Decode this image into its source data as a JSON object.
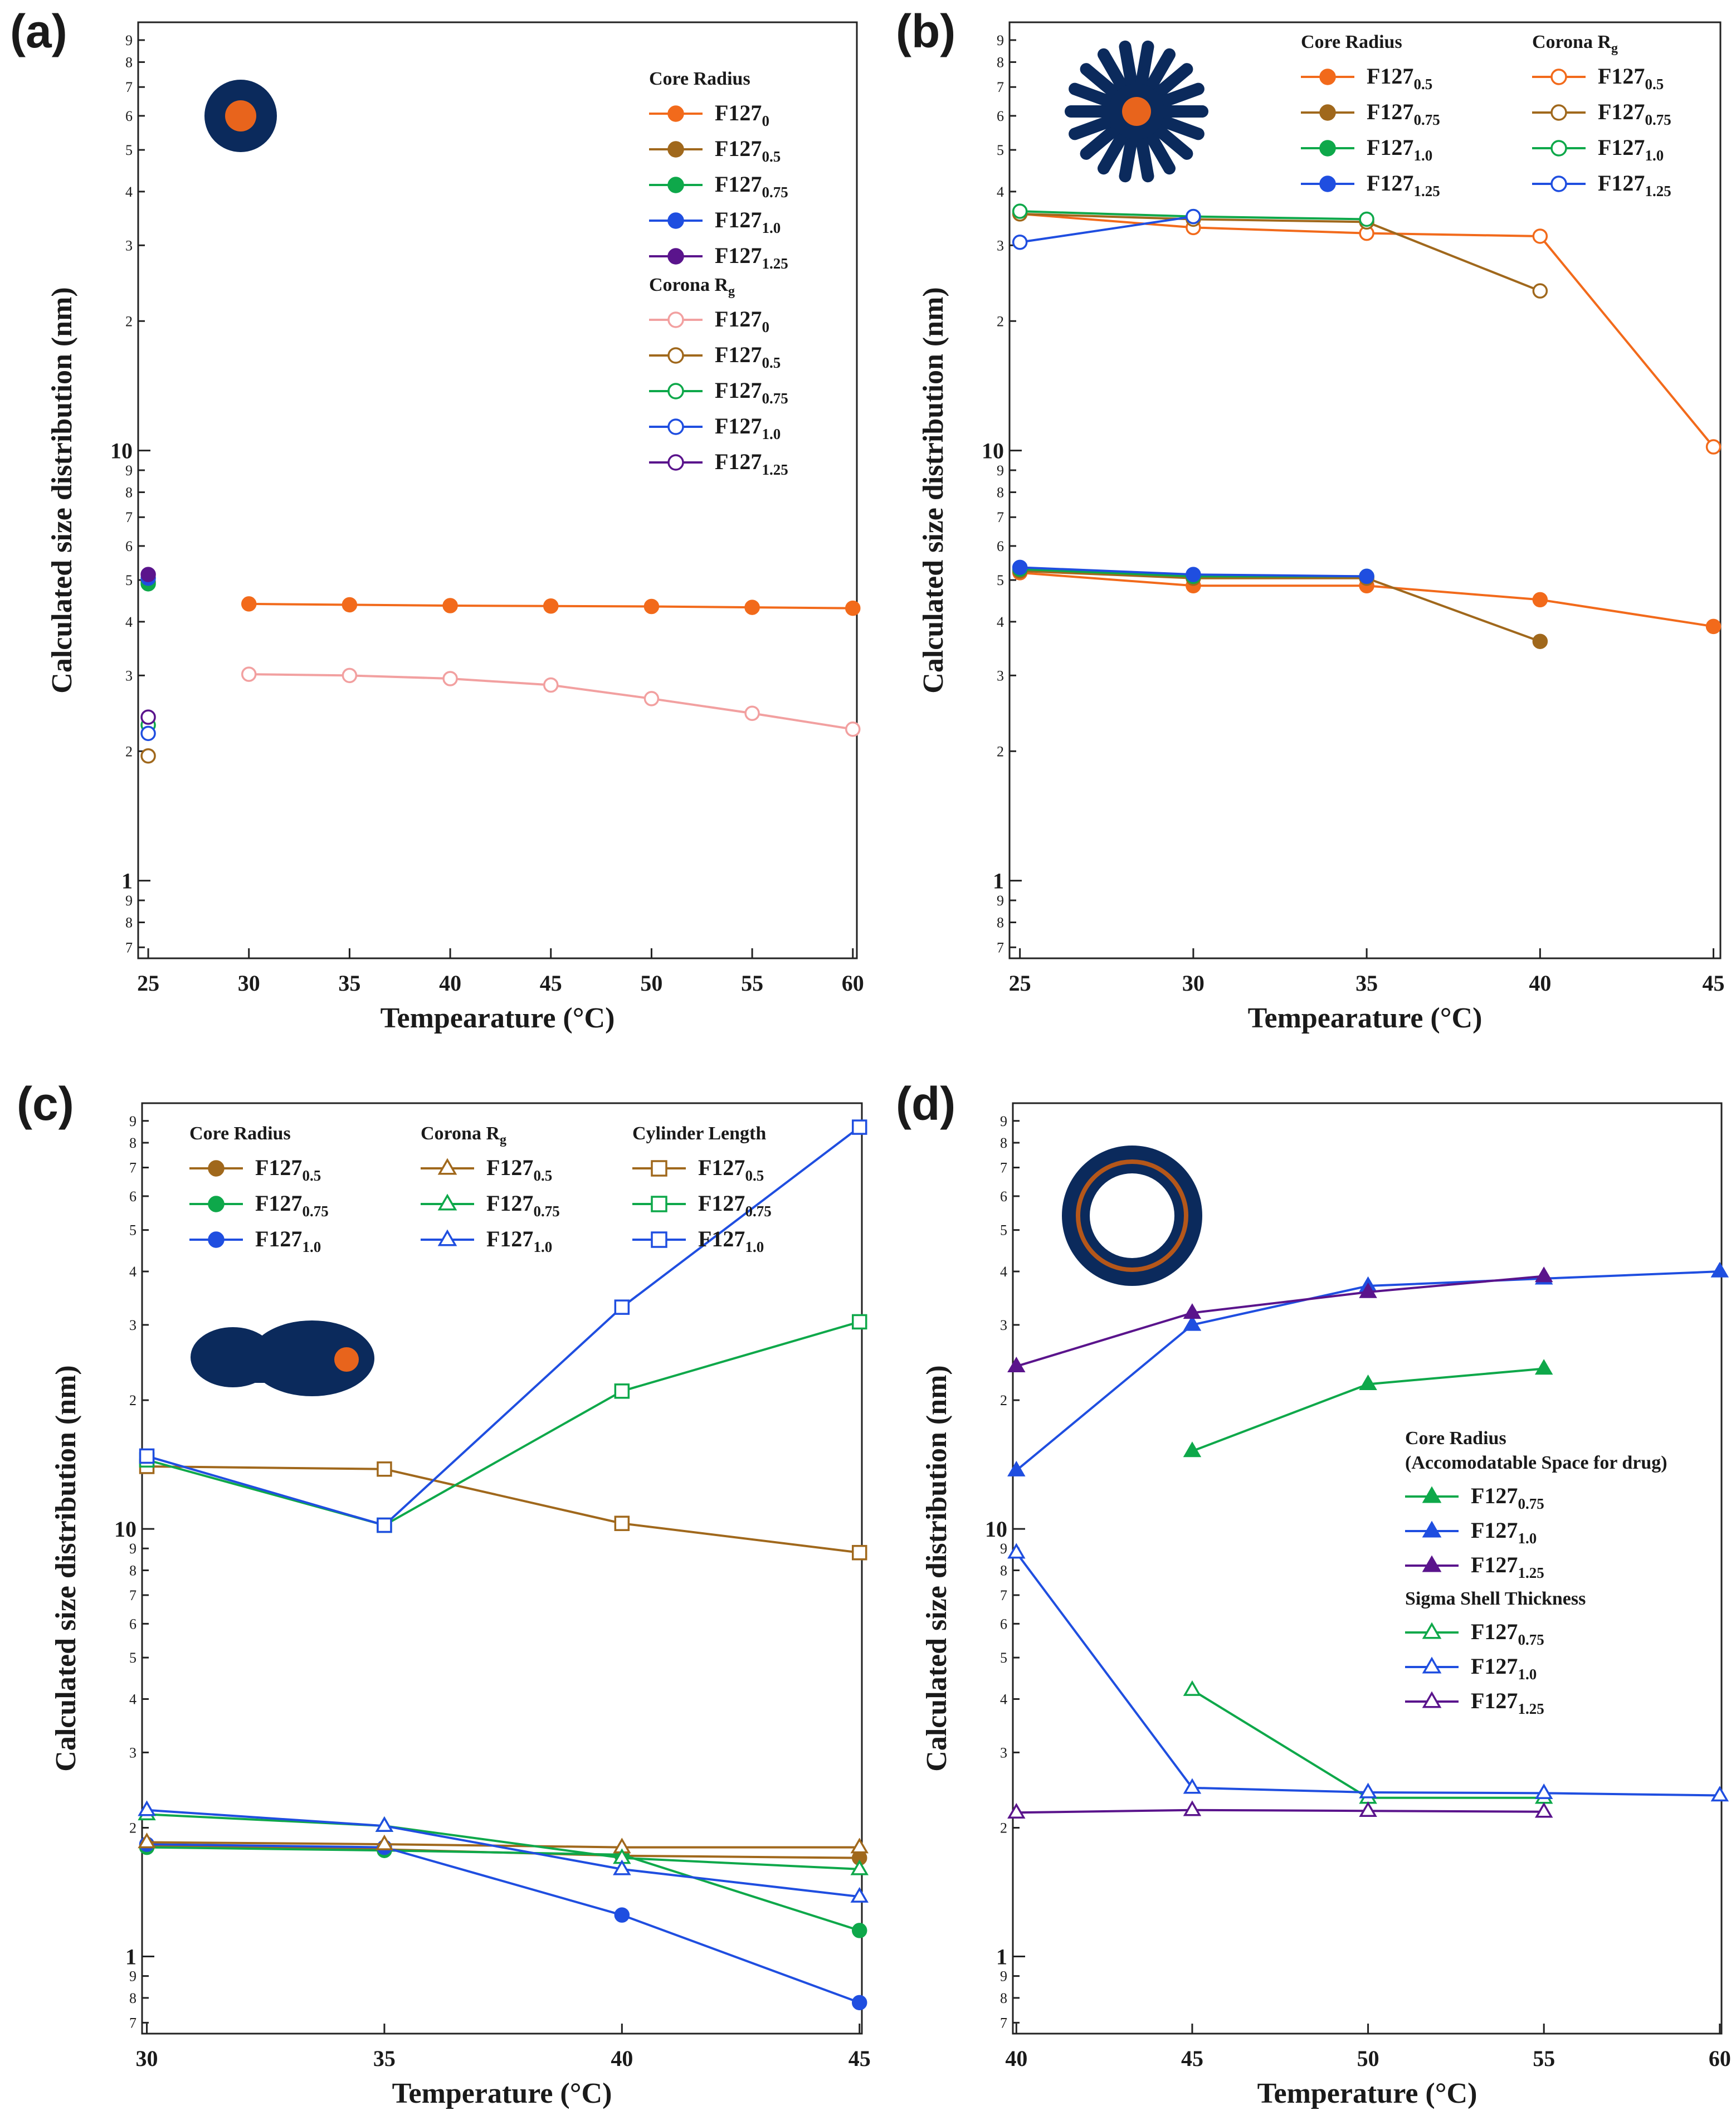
{
  "figure": {
    "description_lines": []
  },
  "chart_data": [
    {
      "panel": "(a)",
      "type": "line",
      "yscale": "log",
      "xlabel": "Tempearature (°C)",
      "ylabel": "Calculated size distribution (nm)",
      "xlim": [
        24.5,
        60.2
      ],
      "ylim": [
        0.66,
        99
      ],
      "xticks": [
        25,
        30,
        35,
        40,
        45,
        50,
        55,
        60
      ],
      "icon": "sphere-micelle-icon",
      "legend_groups": [
        {
          "title": "Core Radius",
          "items": [
            "F127_0",
            "F127_0.5",
            "F127_0.75",
            "F127_1.0",
            "F127_1.25"
          ]
        },
        {
          "title": "Corona Rg",
          "items": [
            "F127_0",
            "F127_0.5",
            "F127_0.75",
            "F127_1.0",
            "F127_1.25"
          ]
        }
      ],
      "series": [
        {
          "name": "Core Radius F127_0",
          "marker": "circle",
          "filled": true,
          "color": "#f26a1b",
          "x": [
            30,
            35,
            40,
            45,
            50,
            55,
            60
          ],
          "y": [
            4.4,
            4.38,
            4.36,
            4.35,
            4.34,
            4.32,
            4.3
          ]
        },
        {
          "name": "Core Radius F127_0.5",
          "marker": "circle",
          "filled": true,
          "color": "#a0681c",
          "x": [
            25
          ],
          "y": [
            4.95
          ]
        },
        {
          "name": "Core Radius F127_0.75",
          "marker": "circle",
          "filled": true,
          "color": "#0ea84a",
          "x": [
            25
          ],
          "y": [
            4.9
          ]
        },
        {
          "name": "Core Radius F127_1.0",
          "marker": "circle",
          "filled": true,
          "color": "#1f4ee0",
          "x": [
            25
          ],
          "y": [
            5.05
          ]
        },
        {
          "name": "Core Radius F127_1.25",
          "marker": "circle",
          "filled": true,
          "color": "#5a148c",
          "x": [
            25
          ],
          "y": [
            5.15
          ]
        },
        {
          "name": "Corona Rg F127_0",
          "marker": "circle",
          "filled": false,
          "color": "#f2a0a0",
          "x": [
            30,
            35,
            40,
            45,
            50,
            55,
            60
          ],
          "y": [
            3.02,
            3.0,
            2.95,
            2.85,
            2.65,
            2.45,
            2.25
          ]
        },
        {
          "name": "Corona Rg F127_0.5",
          "marker": "circle",
          "filled": false,
          "color": "#a0681c",
          "x": [
            25
          ],
          "y": [
            1.95
          ]
        },
        {
          "name": "Corona Rg F127_0.75",
          "marker": "circle",
          "filled": false,
          "color": "#0ea84a",
          "x": [
            25
          ],
          "y": [
            2.3
          ]
        },
        {
          "name": "Corona Rg F127_1.0",
          "marker": "circle",
          "filled": false,
          "color": "#1f4ee0",
          "x": [
            25
          ],
          "y": [
            2.2
          ]
        },
        {
          "name": "Corona Rg F127_1.25",
          "marker": "circle",
          "filled": false,
          "color": "#5a148c",
          "x": [
            25
          ],
          "y": [
            2.4
          ]
        }
      ]
    },
    {
      "panel": "(b)",
      "type": "line",
      "yscale": "log",
      "xlabel": "Tempearature (°C)",
      "ylabel": "Calculated size distribution (nm)",
      "xlim": [
        24.7,
        45.2
      ],
      "ylim": [
        0.66,
        99
      ],
      "xticks": [
        25,
        30,
        35,
        40,
        45
      ],
      "icon": "star-micelle-icon",
      "legend_groups": [
        {
          "title": "Core Radius",
          "items": [
            "F127_0.5",
            "F127_0.75",
            "F127_1.0",
            "F127_1.25"
          ]
        },
        {
          "title": "Corona Rg",
          "items": [
            "F127_0.5",
            "F127_0.75",
            "F127_1.0",
            "F127_1.25"
          ]
        }
      ],
      "series": [
        {
          "name": "Core Radius F127_0.5",
          "marker": "circle",
          "filled": true,
          "color": "#f26a1b",
          "x": [
            25,
            30,
            35,
            40,
            45
          ],
          "y": [
            5.2,
            4.85,
            4.85,
            4.5,
            3.9
          ]
        },
        {
          "name": "Core Radius F127_0.75",
          "marker": "circle",
          "filled": true,
          "color": "#a0681c",
          "x": [
            25,
            30,
            35,
            40
          ],
          "y": [
            5.25,
            5.05,
            5.05,
            3.6
          ]
        },
        {
          "name": "Core Radius F127_1.0",
          "marker": "circle",
          "filled": true,
          "color": "#0ea84a",
          "x": [
            25,
            30,
            35
          ],
          "y": [
            5.3,
            5.1,
            5.1
          ]
        },
        {
          "name": "Core Radius F127_1.25",
          "marker": "circle",
          "filled": true,
          "color": "#1f4ee0",
          "x": [
            25,
            30,
            35
          ],
          "y": [
            5.35,
            5.15,
            5.1
          ]
        },
        {
          "name": "Corona Rg F127_0.5",
          "marker": "circle",
          "filled": false,
          "color": "#f26a1b",
          "x": [
            25,
            30,
            35,
            40,
            45
          ],
          "y": [
            35.5,
            33,
            32,
            31.5,
            10.2
          ]
        },
        {
          "name": "Corona Rg F127_0.75",
          "marker": "circle",
          "filled": false,
          "color": "#a0681c",
          "x": [
            25,
            30,
            35,
            40
          ],
          "y": [
            35.5,
            34.5,
            34,
            23.5
          ]
        },
        {
          "name": "Corona Rg F127_1.0",
          "marker": "circle",
          "filled": false,
          "color": "#0ea84a",
          "x": [
            25,
            30,
            35
          ],
          "y": [
            36,
            35,
            34.5
          ]
        },
        {
          "name": "Corona Rg F127_1.25",
          "marker": "circle",
          "filled": false,
          "color": "#1f4ee0",
          "x": [
            25,
            30
          ],
          "y": [
            30.5,
            35
          ]
        }
      ]
    },
    {
      "panel": "(c)",
      "type": "line",
      "yscale": "log",
      "xlabel": "Temperature (°C)",
      "ylabel": "Calculated size distribution (nm)",
      "xlim": [
        29.9,
        45.05
      ],
      "ylim": [
        0.66,
        99
      ],
      "xticks": [
        30,
        35,
        40,
        45
      ],
      "icon": "cylinder-micelle-icon",
      "legend_groups": [
        {
          "title": "Core Radius",
          "items": [
            "F127_0.5",
            "F127_0.75",
            "F127_1.0"
          ]
        },
        {
          "title": "Corona Rg",
          "items": [
            "F127_0.5",
            "F127_0.75",
            "F127_1.0"
          ]
        },
        {
          "title": "Cylinder Length",
          "items": [
            "F127_0.5",
            "F127_0.75",
            "F127_1.0"
          ]
        }
      ],
      "series": [
        {
          "name": "Core Radius F127_0.5",
          "marker": "circle",
          "filled": true,
          "color": "#a0681c",
          "x": [
            30,
            35,
            40,
            45
          ],
          "y": [
            1.82,
            1.78,
            1.72,
            1.7
          ]
        },
        {
          "name": "Core Radius F127_0.75",
          "marker": "circle",
          "filled": true,
          "color": "#0ea84a",
          "x": [
            30,
            35,
            40,
            45
          ],
          "y": [
            1.8,
            1.77,
            1.73,
            1.15
          ]
        },
        {
          "name": "Core Radius F127_1.0",
          "marker": "circle",
          "filled": true,
          "color": "#1f4ee0",
          "x": [
            30,
            35,
            40,
            45
          ],
          "y": [
            1.83,
            1.8,
            1.25,
            0.78
          ]
        },
        {
          "name": "Corona Rg F127_0.5",
          "marker": "triangle",
          "filled": false,
          "color": "#a0681c",
          "x": [
            30,
            35,
            40,
            45
          ],
          "y": [
            1.85,
            1.83,
            1.8,
            1.8
          ]
        },
        {
          "name": "Corona Rg F127_0.75",
          "marker": "triangle",
          "filled": false,
          "color": "#0ea84a",
          "x": [
            30,
            35,
            40,
            45
          ],
          "y": [
            2.15,
            2.02,
            1.7,
            1.6
          ]
        },
        {
          "name": "Corona Rg F127_1.0",
          "marker": "triangle",
          "filled": false,
          "color": "#1f4ee0",
          "x": [
            30,
            35,
            40,
            45
          ],
          "y": [
            2.2,
            2.02,
            1.6,
            1.38
          ]
        },
        {
          "name": "Cylinder Length F127_0.5",
          "marker": "square",
          "filled": false,
          "color": "#a0681c",
          "x": [
            30,
            35,
            40,
            45
          ],
          "y": [
            14,
            13.8,
            10.3,
            8.8
          ]
        },
        {
          "name": "Cylinder Length F127_0.75",
          "marker": "square",
          "filled": false,
          "color": "#0ea84a",
          "x": [
            30,
            35,
            40,
            45
          ],
          "y": [
            14.5,
            10.2,
            21,
            30.5
          ]
        },
        {
          "name": "Cylinder Length F127_1.0",
          "marker": "square",
          "filled": false,
          "color": "#1f4ee0",
          "x": [
            30,
            35,
            40,
            45
          ],
          "y": [
            14.8,
            10.2,
            33,
            87
          ]
        }
      ]
    },
    {
      "panel": "(d)",
      "type": "line",
      "yscale": "log",
      "xlabel": "Temperature (°C)",
      "ylabel": "Calculated size distribution (nm)",
      "xlim": [
        39.9,
        60.05
      ],
      "ylim": [
        0.66,
        99
      ],
      "xticks": [
        40,
        45,
        50,
        55,
        60
      ],
      "icon": "vesicle-icon",
      "legend_groups": [
        {
          "title": "Core Radius",
          "subtitle": "(Accomodatable Space for drug)",
          "items": [
            "F127_0.75",
            "F127_1.0",
            "F127_1.25"
          ]
        },
        {
          "title": "Sigma Shell Thickness",
          "items": [
            "F127_0.75",
            "F127_1.0",
            "F127_1.25"
          ]
        }
      ],
      "series": [
        {
          "name": "Core Radius F127_0.75",
          "marker": "triangle",
          "filled": true,
          "color": "#0ea84a",
          "x": [
            45,
            50,
            55
          ],
          "y": [
            15.2,
            21.8,
            23.7
          ]
        },
        {
          "name": "Core Radius F127_1.0",
          "marker": "triangle",
          "filled": true,
          "color": "#1f4ee0",
          "x": [
            40,
            45,
            50,
            55,
            60
          ],
          "y": [
            13.7,
            30,
            37,
            38.5,
            40
          ]
        },
        {
          "name": "Core Radius F127_1.25",
          "marker": "triangle",
          "filled": true,
          "color": "#5a148c",
          "x": [
            40,
            45,
            50,
            55
          ],
          "y": [
            24,
            32,
            35.8,
            39
          ]
        },
        {
          "name": "Sigma Shell Thickness F127_0.75",
          "marker": "triangle",
          "filled": false,
          "color": "#0ea84a",
          "x": [
            45,
            50,
            55
          ],
          "y": [
            4.2,
            2.35,
            2.35
          ]
        },
        {
          "name": "Sigma Shell Thickness F127_1.0",
          "marker": "triangle",
          "filled": false,
          "color": "#1f4ee0",
          "x": [
            40,
            45,
            50,
            55,
            60
          ],
          "y": [
            8.8,
            2.48,
            2.42,
            2.41,
            2.38
          ]
        },
        {
          "name": "Sigma Shell Thickness F127_1.25",
          "marker": "triangle",
          "filled": false,
          "color": "#5a148c",
          "x": [
            40,
            45,
            50,
            55
          ],
          "y": [
            2.17,
            2.2,
            2.19,
            2.18
          ]
        }
      ]
    }
  ]
}
